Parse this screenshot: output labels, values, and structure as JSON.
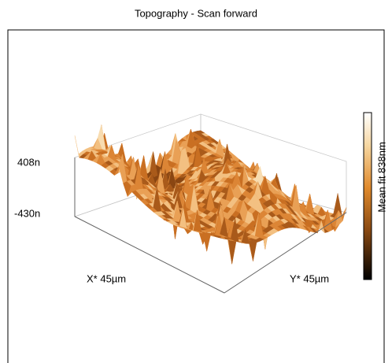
{
  "title": "Topography - Scan forward",
  "z_axis": {
    "top_label": "408n",
    "bottom_label": "-430n"
  },
  "x_axis_label": "X* 45µm",
  "y_axis_label": "Y* 45µm",
  "colorbar_label": "Mean fit 838nm"
}
